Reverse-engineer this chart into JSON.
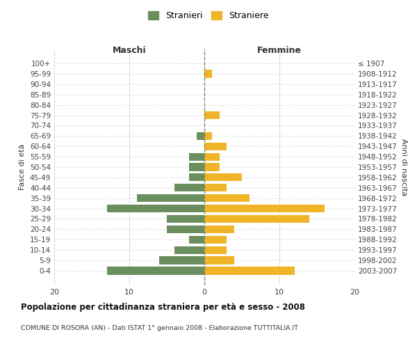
{
  "age_groups": [
    "100+",
    "95-99",
    "90-94",
    "85-89",
    "80-84",
    "75-79",
    "70-74",
    "65-69",
    "60-64",
    "55-59",
    "50-54",
    "45-49",
    "40-44",
    "35-39",
    "30-34",
    "25-29",
    "20-24",
    "15-19",
    "10-14",
    "5-9",
    "0-4"
  ],
  "birth_years": [
    "≤ 1907",
    "1908-1912",
    "1913-1917",
    "1918-1922",
    "1923-1927",
    "1928-1932",
    "1933-1937",
    "1938-1942",
    "1943-1947",
    "1948-1952",
    "1953-1957",
    "1958-1962",
    "1963-1967",
    "1968-1972",
    "1973-1977",
    "1978-1982",
    "1983-1987",
    "1988-1992",
    "1993-1997",
    "1998-2002",
    "2003-2007"
  ],
  "maschi": [
    0,
    0,
    0,
    0,
    0,
    0,
    0,
    1,
    0,
    2,
    2,
    2,
    4,
    9,
    13,
    5,
    5,
    2,
    4,
    6,
    13
  ],
  "femmine": [
    0,
    1,
    0,
    0,
    0,
    2,
    0,
    1,
    3,
    2,
    2,
    5,
    3,
    6,
    16,
    14,
    4,
    3,
    3,
    4,
    12
  ],
  "color_maschi": "#6b8e5e",
  "color_femmine": "#f0b429",
  "title": "Popolazione per cittadinanza straniera per età e sesso - 2008",
  "subtitle": "COMUNE DI ROSORA (AN) - Dati ISTAT 1° gennaio 2008 - Elaborazione TUTTITALIA.IT",
  "ylabel_left": "Fasce di età",
  "ylabel_right": "Anni di nascita",
  "xlabel_left": "Maschi",
  "xlabel_right": "Femmine",
  "legend_maschi": "Stranieri",
  "legend_femmine": "Straniere",
  "xlim": 20,
  "background_color": "#ffffff",
  "grid_color": "#cccccc"
}
